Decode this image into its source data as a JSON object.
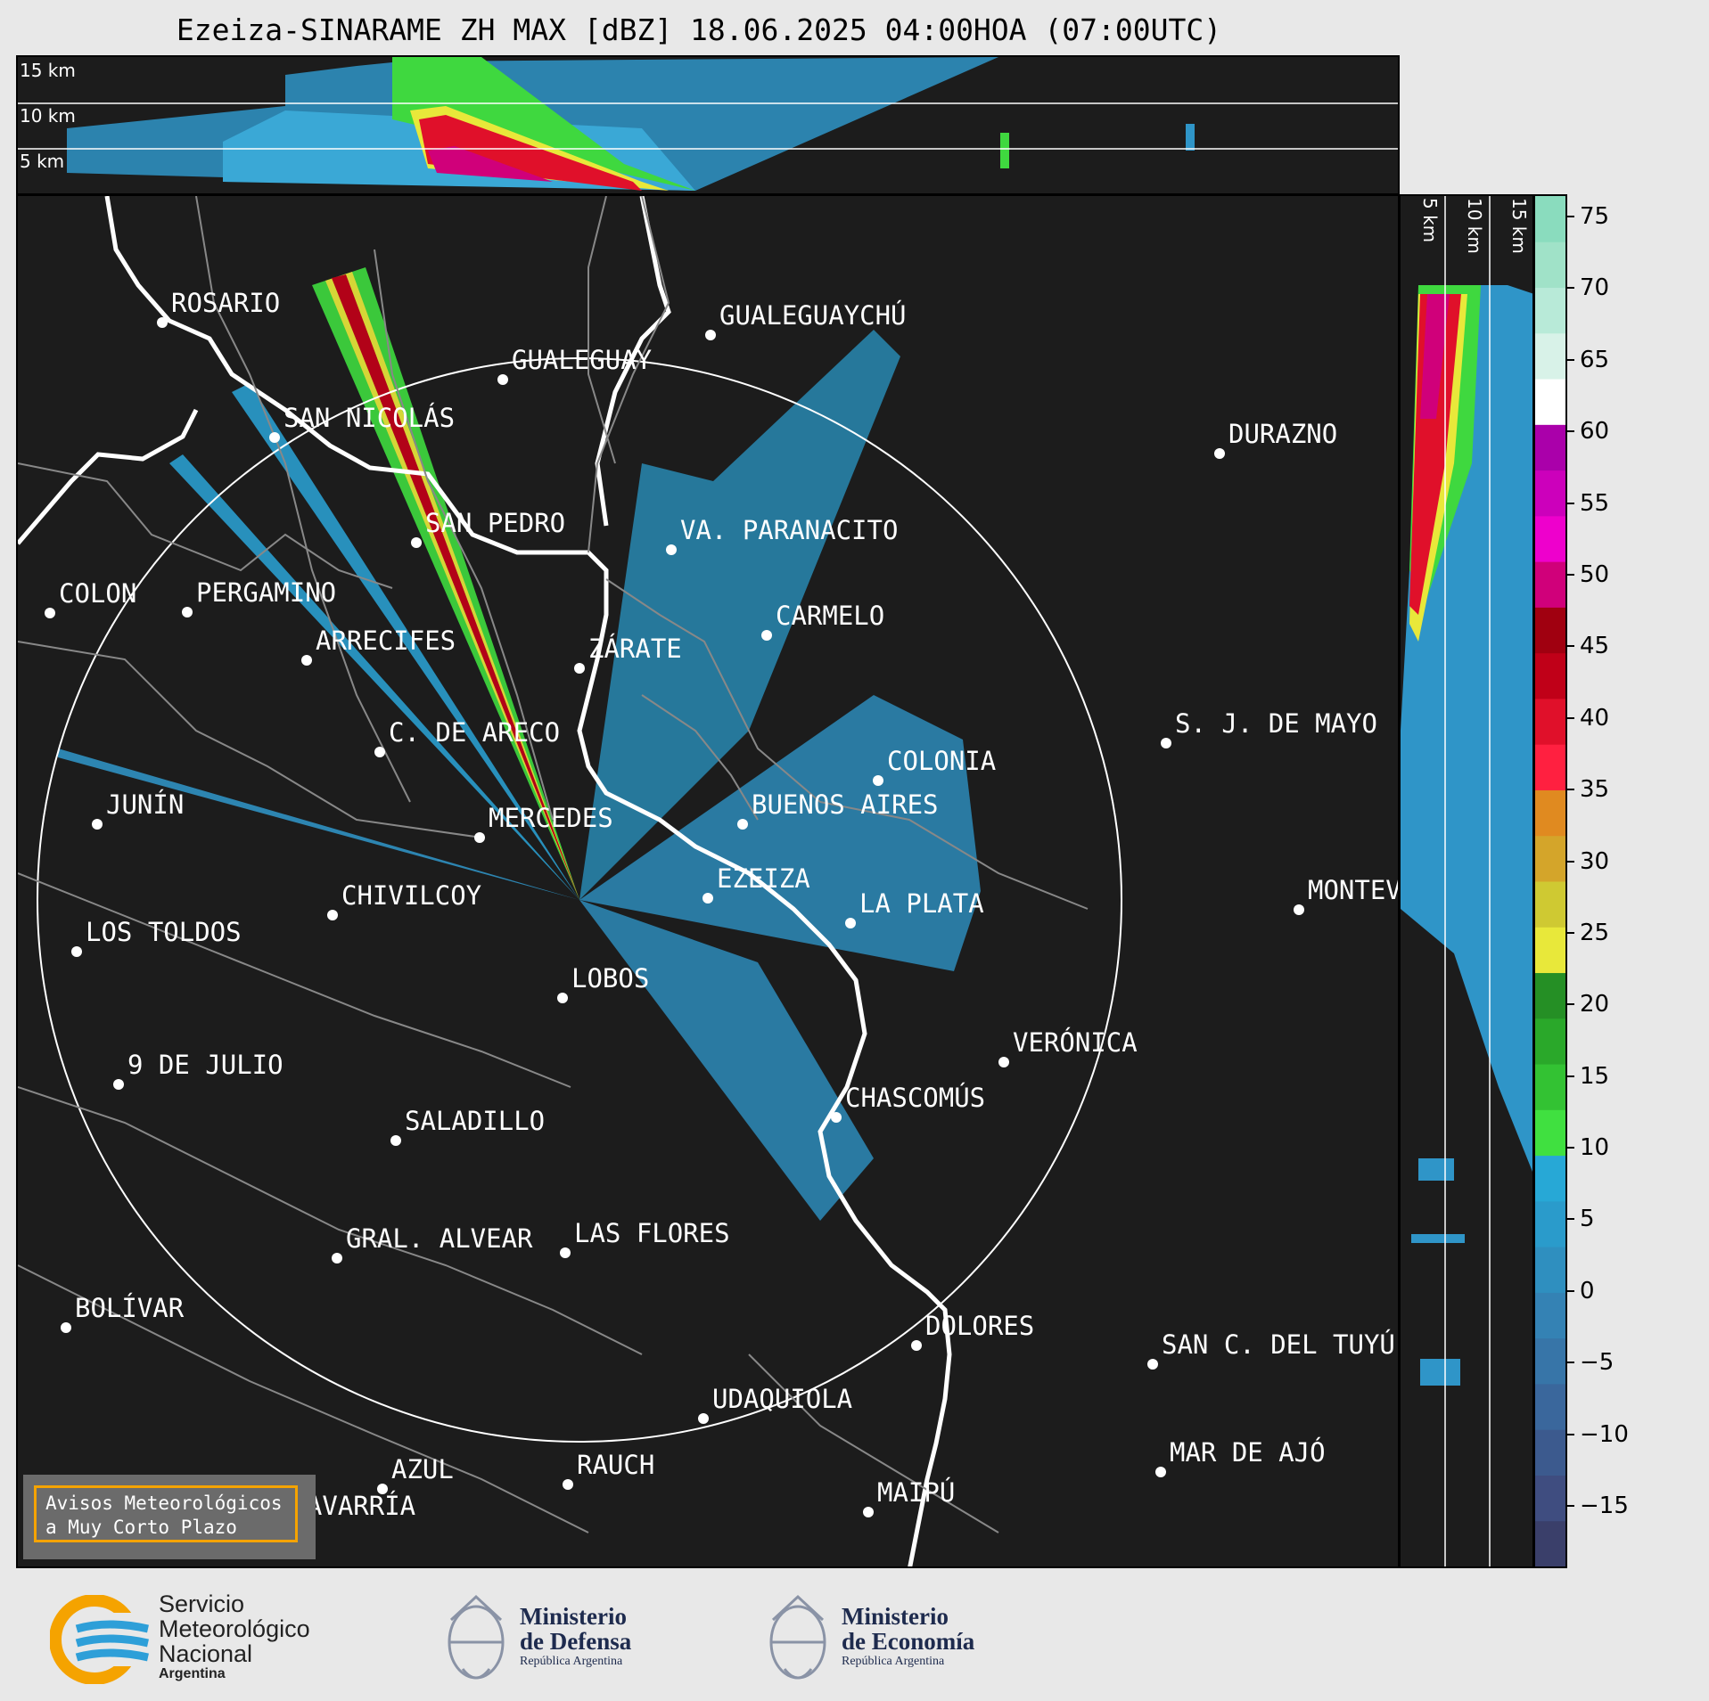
{
  "title": "Ezeiza-SINARAME ZH MAX [dBZ] 18.06.2025 04:00HOA (07:00UTC)",
  "top_panel": {
    "height_labels": [
      "15 km",
      "10 km",
      "5 km"
    ]
  },
  "side_panel": {
    "height_labels": [
      "5 km",
      "10 km",
      "15 km"
    ]
  },
  "colorbar": {
    "ticks": [
      "75",
      "70",
      "65",
      "60",
      "55",
      "50",
      "45",
      "40",
      "35",
      "30",
      "25",
      "20",
      "15",
      "10",
      "5",
      "0",
      "−5",
      "−10",
      "−15"
    ],
    "colors": [
      "#3a3f6a",
      "#3f4d80",
      "#3c5a8e",
      "#3a679c",
      "#3775a8",
      "#3482b4",
      "#2f8fbf",
      "#2a9bcb",
      "#27a8d6",
      "#40e040",
      "#33c233",
      "#2aa82a",
      "#258f25",
      "#e8e83a",
      "#cfc932",
      "#d4a52a",
      "#e08a20",
      "#ff2040",
      "#e0102a",
      "#c00018",
      "#a00010",
      "#d0007a",
      "#ee00cc",
      "#cc00bb",
      "#aa00aa",
      "#ffffff",
      "#d8f2e8",
      "#b8ead8",
      "#a0e2c8",
      "#8adcbe"
    ]
  },
  "cities": [
    {
      "name": "ROSARIO"
    },
    {
      "name": "GUALEGUAYCHÚ"
    },
    {
      "name": "GUALEGUAY"
    },
    {
      "name": "SAN NICOLÁS"
    },
    {
      "name": "DURAZNO"
    },
    {
      "name": "SAN PEDRO"
    },
    {
      "name": "VA. PARANACITO"
    },
    {
      "name": "COLON"
    },
    {
      "name": "PERGAMINO"
    },
    {
      "name": "CARMELO"
    },
    {
      "name": "ARRECIFES"
    },
    {
      "name": "ZÁRATE"
    },
    {
      "name": "S. J. DE MAYO"
    },
    {
      "name": "C. DE ARECO"
    },
    {
      "name": "COLONIA"
    },
    {
      "name": "JUNÍN"
    },
    {
      "name": "BUENOS AIRES"
    },
    {
      "name": "MERCEDES"
    },
    {
      "name": "MONTEVIDEO"
    },
    {
      "name": "EZEIZA"
    },
    {
      "name": "CHIVILCOY"
    },
    {
      "name": "LA PLATA"
    },
    {
      "name": "LOS TOLDOS"
    },
    {
      "name": "LOBOS"
    },
    {
      "name": "VERÓNICA"
    },
    {
      "name": "9 DE JULIO"
    },
    {
      "name": "CHASCOMÚS"
    },
    {
      "name": "SALADILLO"
    },
    {
      "name": "GRAL. ALVEAR"
    },
    {
      "name": "LAS FLORES"
    },
    {
      "name": "BOLÍVAR"
    },
    {
      "name": "DOLORES"
    },
    {
      "name": "SAN C. DEL TUYÚ"
    },
    {
      "name": "UDAQUIOLA"
    },
    {
      "name": "MAR DE AJÓ"
    },
    {
      "name": "AZUL"
    },
    {
      "name": "RAUCH"
    },
    {
      "name": "MAIPÚ"
    },
    {
      "name": "OLAVARRÍA"
    }
  ],
  "warning_box": {
    "line1": "Avisos Meteorológicos",
    "line2": "a Muy Corto Plazo"
  },
  "footer": {
    "smn": {
      "line1": "Servicio",
      "line2": "Meteorológico",
      "line3": "Nacional",
      "line4": "Argentina"
    },
    "defensa": {
      "line1": "Ministerio",
      "line2": "de Defensa",
      "line3": "República Argentina"
    },
    "economia": {
      "line1": "Ministerio",
      "line2": "de Economía",
      "line3": "República Argentina"
    }
  }
}
